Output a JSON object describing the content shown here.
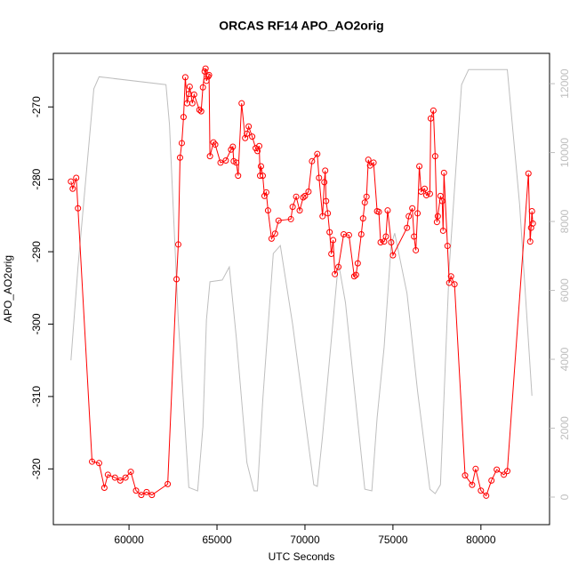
{
  "chart_data": {
    "type": "line",
    "title": "ORCAS RF14 APO_AO2orig",
    "x_label": "UTC Seconds",
    "y_label": "APO_AO2orig",
    "xlim": [
      55700,
      83900
    ],
    "ylim": [
      -327.7,
      -262.6
    ],
    "y2lim": [
      -800,
      12880
    ],
    "xticks": [
      60000,
      65000,
      70000,
      75000,
      80000
    ],
    "yticks": [
      -320,
      -310,
      -300,
      -290,
      -280,
      -270
    ],
    "y2ticks": [
      0,
      2000,
      4000,
      6000,
      8000,
      10000,
      12000
    ],
    "series": [
      {
        "color": "#ff0000",
        "markers": true,
        "x": [
          56700,
          56800,
          57000,
          57100,
          57900,
          58300,
          58600,
          58800,
          59200,
          59500,
          59800,
          60100,
          60400,
          60700,
          61000,
          61300,
          62200,
          62700,
          62800,
          62900,
          63000,
          63100,
          63200,
          63300,
          63400,
          63450,
          63600,
          63700,
          64000,
          64100,
          64200,
          64300,
          64350,
          64400,
          64500,
          64550,
          64600,
          64800,
          64900,
          65200,
          65500,
          65800,
          65900,
          65950,
          66100,
          66200,
          66400,
          66600,
          66700,
          66800,
          67000,
          67200,
          67300,
          67400,
          67450,
          67500,
          67600,
          67700,
          67800,
          67900,
          68100,
          68300,
          68500,
          69200,
          69300,
          69500,
          69700,
          69900,
          70000,
          70200,
          70400,
          70700,
          70800,
          71000,
          71100,
          71150,
          71200,
          71300,
          71400,
          71500,
          71600,
          71700,
          71900,
          72200,
          72500,
          72800,
          72900,
          73000,
          73200,
          73300,
          73400,
          73500,
          73600,
          73700,
          73900,
          74100,
          74200,
          74300,
          74500,
          74600,
          74700,
          74900,
          75000,
          75800,
          75900,
          76100,
          76200,
          76300,
          76400,
          76500,
          76600,
          76800,
          76900,
          77100,
          77150,
          77300,
          77400,
          77500,
          77550,
          77700,
          77800,
          77850,
          77900,
          78100,
          78200,
          78300,
          78500,
          79100,
          79500,
          79700,
          80000,
          80300,
          80600,
          80900,
          81300,
          81500,
          82700,
          82800,
          82850,
          82900,
          82950
        ],
        "values": [
          -280.3,
          -281.3,
          -279.8,
          -284.0,
          -319.0,
          -319.2,
          -322.6,
          -320.8,
          -321.2,
          -321.6,
          -321.2,
          -320.4,
          -323.0,
          -323.6,
          -323.2,
          -323.6,
          -322.1,
          -293.8,
          -289.0,
          -277.0,
          -275.0,
          -271.4,
          -265.9,
          -269.5,
          -268.2,
          -267.2,
          -269.5,
          -268.3,
          -270.4,
          -270.6,
          -267.3,
          -265.1,
          -264.7,
          -266.4,
          -265.8,
          -265.6,
          -276.8,
          -274.9,
          -275.2,
          -277.7,
          -277.4,
          -275.9,
          -275.5,
          -277.5,
          -277.7,
          -279.5,
          -269.5,
          -274.3,
          -273.7,
          -272.7,
          -274.1,
          -275.7,
          -276.1,
          -275.4,
          -279.5,
          -278.2,
          -279.5,
          -282.3,
          -281.8,
          -284.3,
          -288.2,
          -287.5,
          -285.7,
          -285.5,
          -283.8,
          -282.4,
          -284.3,
          -282.5,
          -282.3,
          -281.7,
          -277.5,
          -276.5,
          -279.8,
          -285.1,
          -280.4,
          -278.8,
          -283.0,
          -284.7,
          -287.3,
          -290.3,
          -288.4,
          -293.1,
          -292.1,
          -287.6,
          -287.7,
          -293.4,
          -293.2,
          -291.6,
          -287.6,
          -285.4,
          -283.2,
          -282.4,
          -277.3,
          -278.1,
          -277.7,
          -284.4,
          -284.5,
          -288.7,
          -288.6,
          -287.9,
          -284.3,
          -288.7,
          -290.5,
          -286.7,
          -285.1,
          -284.0,
          -287.9,
          -289.8,
          -284.7,
          -278.2,
          -281.7,
          -281.3,
          -282.2,
          -282.0,
          -271.6,
          -270.5,
          -276.8,
          -285.9,
          -285.1,
          -282.3,
          -283.0,
          -287.1,
          -279.1,
          -289.2,
          -294.3,
          -293.4,
          -294.5,
          -320.9,
          -322.2,
          -320.0,
          -323.0,
          -323.7,
          -321.6,
          -320.1,
          -320.8,
          -320.3,
          -279.2,
          -288.6,
          -286.7,
          -284.4,
          -286.1
        ]
      },
      {
        "color": "#bebebe",
        "axis": "y2",
        "markers": false,
        "x": [
          56700,
          57100,
          58000,
          58300,
          62100,
          62300,
          62800,
          63400,
          63900,
          64200,
          64400,
          64600,
          65300,
          65700,
          66100,
          66700,
          67100,
          67300,
          67600,
          68200,
          68600,
          69300,
          70500,
          70700,
          71000,
          71900,
          72300,
          73400,
          73800,
          74100,
          74500,
          74900,
          75100,
          75800,
          76400,
          77100,
          77400,
          77700,
          78200,
          78900,
          79300,
          81500,
          82200,
          82900
        ],
        "values": [
          3970,
          6680,
          11850,
          12200,
          11970,
          10810,
          5140,
          280,
          180,
          2040,
          5140,
          6250,
          6300,
          6680,
          4620,
          1000,
          180,
          180,
          2810,
          7070,
          7300,
          5010,
          360,
          310,
          1780,
          6810,
          5650,
          230,
          180,
          2300,
          4360,
          7330,
          7660,
          5910,
          3070,
          230,
          100,
          360,
          6680,
          11970,
          12410,
          12410,
          8490,
          2940
        ]
      }
    ]
  }
}
